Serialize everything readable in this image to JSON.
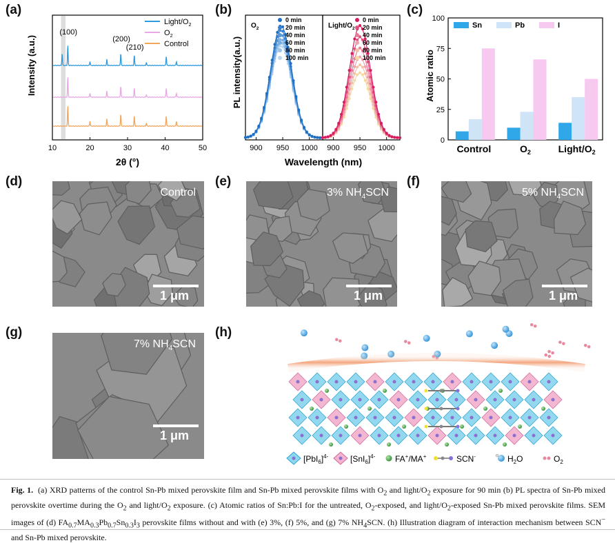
{
  "panel_labels": {
    "a": "(a)",
    "b": "(b)",
    "c": "(c)",
    "d": "(d)",
    "e": "(e)",
    "f": "(f)",
    "g": "(g)",
    "h": "(h)"
  },
  "chart_data": [
    {
      "id": "a",
      "type": "line",
      "xlabel": "2θ (°)",
      "ylabel": "Intensity (a.u.)",
      "xlim": [
        10,
        50
      ],
      "xticks": [
        "10",
        "20",
        "30",
        "40",
        "50"
      ],
      "legend": [
        "Light/O2",
        "O2",
        "Control"
      ],
      "peak_labels": [
        "(100)",
        "(200)",
        "(210)"
      ],
      "series": [
        {
          "name": "Light/O2",
          "color": "#2e9be0",
          "peaks": [
            [
              12.6,
              0.6
            ],
            [
              14.1,
              1.0
            ],
            [
              20.0,
              0.2
            ],
            [
              24.5,
              0.3
            ],
            [
              28.2,
              0.6
            ],
            [
              31.8,
              0.5
            ],
            [
              35.0,
              0.15
            ],
            [
              40.3,
              0.45
            ],
            [
              43.0,
              0.2
            ]
          ]
        },
        {
          "name": "O2",
          "color": "#e8a8e6",
          "peaks": [
            [
              14.1,
              1.0
            ],
            [
              20.0,
              0.2
            ],
            [
              24.5,
              0.3
            ],
            [
              28.2,
              0.55
            ],
            [
              31.8,
              0.45
            ],
            [
              35.0,
              0.12
            ],
            [
              40.3,
              0.45
            ],
            [
              43.0,
              0.2
            ]
          ]
        },
        {
          "name": "Control",
          "color": "#f2a65a",
          "peaks": [
            [
              14.1,
              1.0
            ],
            [
              20.0,
              0.25
            ],
            [
              24.5,
              0.35
            ],
            [
              28.2,
              0.6
            ],
            [
              31.8,
              0.5
            ],
            [
              35.0,
              0.15
            ],
            [
              40.3,
              0.5
            ],
            [
              43.0,
              0.25
            ]
          ]
        }
      ]
    },
    {
      "id": "b",
      "type": "line",
      "xlabel": "Wavelength (nm)",
      "ylabel": "PL intensity(a.u.)",
      "xticks": [
        "900",
        "950",
        "1000"
      ],
      "subpanels": [
        {
          "title": "O2",
          "colors": [
            "#1f6fc4",
            "#3a82cf",
            "#5797d8",
            "#76ade2",
            "#98c3ea",
            "#b8d6f1"
          ],
          "times": [
            "0 min",
            "20 min",
            "40 min",
            "60 min",
            "80 min",
            "100 min"
          ],
          "peak_nm": 947,
          "heights": [
            1.0,
            0.96,
            0.92,
            0.88,
            0.85,
            0.82
          ]
        },
        {
          "title": "Light/O2",
          "colors": [
            "#d81b60",
            "#e2507e",
            "#ea7a99",
            "#f0a2ad",
            "#f2c2a8",
            "#f5d9a0"
          ],
          "times": [
            "0 min",
            "20 min",
            "40 min",
            "60 min",
            "80 min",
            "100 min"
          ],
          "peak_nm": 950,
          "heights": [
            1.0,
            0.9,
            0.8,
            0.72,
            0.65,
            0.58
          ]
        }
      ]
    },
    {
      "id": "c",
      "type": "bar",
      "ylabel": "Atomic ratio",
      "ylim": [
        0,
        100
      ],
      "yticks": [
        "0",
        "25",
        "50",
        "75",
        "100"
      ],
      "categories": [
        "Control",
        "O2",
        "Light/O2"
      ],
      "series": [
        {
          "name": "Sn",
          "color": "#2fa7e8",
          "values": [
            7,
            10,
            14
          ]
        },
        {
          "name": "Pb",
          "color": "#cfe4f7",
          "values": [
            17,
            23,
            35
          ]
        },
        {
          "name": "I",
          "color": "#f7c9f0",
          "values": [
            75,
            66,
            50
          ]
        }
      ]
    }
  ],
  "sem": {
    "d": {
      "label": "Control",
      "scale": "1 μm"
    },
    "e": {
      "label_pre": "3% NH",
      "label_sub": "4",
      "label_post": "SCN",
      "scale": "1 μm"
    },
    "f": {
      "label_pre": "5% NH",
      "label_sub": "4",
      "label_post": "SCN",
      "scale": "1 μm"
    },
    "g": {
      "label_pre": "7% NH",
      "label_sub": "4",
      "label_post": "SCN",
      "scale": "1 μm"
    }
  },
  "legend_h": {
    "pbi": "[PbI6]4-",
    "sni": "[SnI6]4-",
    "fa": "FA+/MA+",
    "scn": "SCN-",
    "h2o": "H2O",
    "o2": "O2"
  },
  "caption": {
    "fig": "Fig. 1.",
    "text": "(a) XRD patterns of the control Sn-Pb mixed perovskite film and Sn-Pb mixed perovskite films with O2 and light/O2 exposure for 90 min (b) PL spectra of Sn-Pb mixed perovskite overtime during the O2 and light/O2 exposure. (c) Atomic ratios of Sn:Pb:I for the untreated, O2-exposed, and light/O2-exposed Sn-Pb mixed perovskite films. SEM images of (d) FA0.7MA0.3Pb0.7Sn0.3I3 perovskite films without and with (e) 3%, (f) 5%, and (g) 7% NH4SCN. (h) Illustration diagram of interaction mechanism between SCN− and Sn-Pb mixed perovskite."
  }
}
